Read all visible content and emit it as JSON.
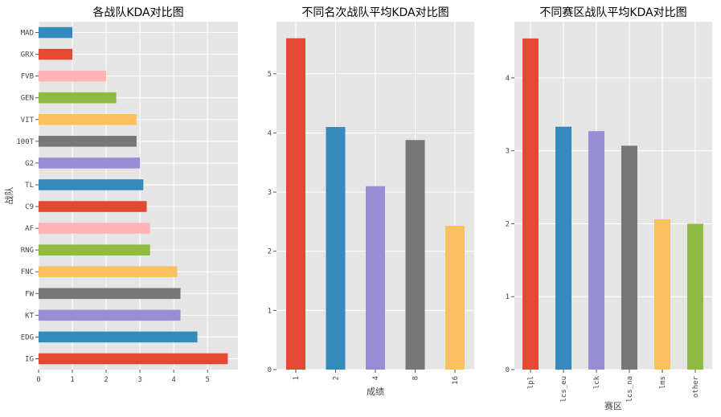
{
  "palette": [
    "#E24A33",
    "#348ABD",
    "#988ED5",
    "#777777",
    "#FBC15E",
    "#8EBA42",
    "#FFB5B8"
  ],
  "chart_data": [
    {
      "type": "bar",
      "orientation": "horizontal",
      "title": "各战队KDA对比图",
      "xlabel": "",
      "ylabel": "战队",
      "categories": [
        "IG",
        "EDG",
        "KT",
        "FW",
        "FNC",
        "RNG",
        "AF",
        "C9",
        "TL",
        "G2",
        "100T",
        "VIT",
        "GEN",
        "FVB",
        "GRX",
        "MAD"
      ],
      "values": [
        5.6,
        4.7,
        4.2,
        4.2,
        4.1,
        3.3,
        3.3,
        3.2,
        3.1,
        3.0,
        2.9,
        2.9,
        2.3,
        2.0,
        1.0,
        1.0
      ],
      "xlim": [
        0,
        5.9
      ],
      "xticks": [
        "0",
        "1",
        "2",
        "3",
        "4",
        "5"
      ],
      "grid": true
    },
    {
      "type": "bar",
      "title": "不同名次战队平均KDA对比图",
      "xlabel": "成绩",
      "ylabel": "",
      "categories": [
        "1",
        "2",
        "4",
        "8",
        "16"
      ],
      "values": [
        5.6,
        4.1,
        3.1,
        3.88,
        2.43
      ],
      "ylim": [
        0,
        5.88
      ],
      "yticks": [
        "0",
        "1",
        "2",
        "3",
        "4",
        "5"
      ],
      "grid": true
    },
    {
      "type": "bar",
      "title": "不同赛区战队平均KDA对比图",
      "xlabel": "赛区",
      "ylabel": "",
      "categories": [
        "lpl",
        "lcs_eu",
        "lck",
        "lcs_na",
        "lms",
        "other"
      ],
      "values": [
        4.54,
        3.33,
        3.27,
        3.07,
        2.06,
        2.0
      ],
      "ylim": [
        0,
        4.77
      ],
      "yticks": [
        "0",
        "1",
        "2",
        "3",
        "4"
      ],
      "grid": true
    }
  ]
}
